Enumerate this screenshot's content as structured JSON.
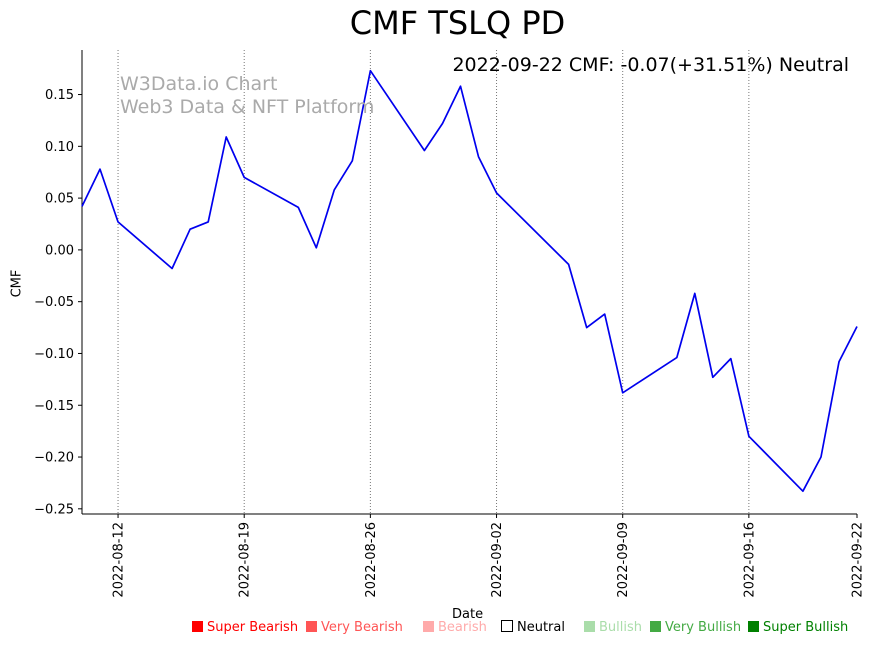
{
  "chart_data": {
    "type": "line",
    "title": "CMF TSLQ PD",
    "xlabel": "Date",
    "ylabel": "CMF",
    "annotation": "2022-09-22 CMF: -0.07(+31.51%) Neutral",
    "watermark": [
      "W3Data.io Chart",
      "Web3 Data & NFT Platform"
    ],
    "ylim": [
      -0.255,
      0.193
    ],
    "yticks": [
      -0.25,
      -0.2,
      -0.15,
      -0.1,
      -0.05,
      0.0,
      0.05,
      0.1,
      0.15
    ],
    "ytick_labels": [
      "−0.25",
      "−0.20",
      "−0.15",
      "−0.10",
      "−0.05",
      "0.00",
      "0.05",
      "0.10",
      "0.15"
    ],
    "xlim": [
      -2,
      41
    ],
    "xticks": [
      0,
      7,
      14,
      21,
      28,
      35,
      41
    ],
    "xtick_labels": [
      "2022-08-12",
      "2022-08-19",
      "2022-08-26",
      "2022-09-02",
      "2022-09-09",
      "2022-09-16",
      "2022-09-22"
    ],
    "vlines_at": [
      0,
      7,
      14,
      21,
      28,
      35
    ],
    "grid": false,
    "series": [
      {
        "name": "CMF",
        "color": "#0000ee",
        "x": [
          -2,
          -1,
          0,
          3,
          4,
          5,
          6,
          7,
          10,
          11,
          12,
          13,
          14,
          17,
          18,
          19,
          20,
          21,
          25,
          26,
          27,
          28,
          31,
          32,
          33,
          34,
          35,
          38,
          39,
          40,
          41
        ],
        "y": [
          0.042,
          0.078,
          0.027,
          -0.018,
          0.02,
          0.027,
          0.109,
          0.07,
          0.041,
          0.002,
          0.058,
          0.086,
          0.173,
          0.096,
          0.122,
          0.158,
          0.09,
          0.055,
          -0.014,
          -0.075,
          -0.062,
          -0.138,
          -0.104,
          -0.042,
          -0.123,
          -0.105,
          -0.18,
          -0.233,
          -0.2,
          -0.108,
          -0.074
        ]
      }
    ]
  },
  "legend": [
    {
      "label": "Super Bearish",
      "color": "#ff0000"
    },
    {
      "label": "Very Bearish",
      "color": "#ff5555"
    },
    {
      "label": "Bearish",
      "color": "#ffaaaa"
    },
    {
      "label": "Neutral",
      "color": "#000000",
      "hollow": true
    },
    {
      "label": "Bullish",
      "color": "#aaddaa"
    },
    {
      "label": "Very Bullish",
      "color": "#44aa44"
    },
    {
      "label": "Super Bullish",
      "color": "#008000"
    }
  ]
}
